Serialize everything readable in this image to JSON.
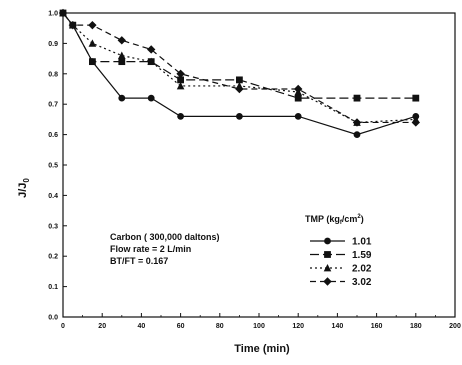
{
  "chart_data": {
    "type": "line",
    "xlabel": "Time (min)",
    "ylabel": "J/J",
    "ylabel_sub": "0",
    "xlim": [
      0,
      200
    ],
    "ylim": [
      0.0,
      1.0
    ],
    "x_ticks": [
      "0",
      "20",
      "40",
      "60",
      "80",
      "100",
      "120",
      "140",
      "160",
      "180",
      "200"
    ],
    "y_ticks": [
      "0.0",
      "0.1",
      "0.2",
      "0.3",
      "0.4",
      "0.5",
      "0.6",
      "0.7",
      "0.8",
      "0.9",
      "1.0"
    ],
    "grid": false,
    "legend_placement": "bottom-right",
    "legend_title": {
      "prefix": "TMP (kg",
      "sub": "f",
      "mid": "/cm",
      "sup": "2",
      "suffix": ")"
    },
    "annotation": [
      "Carbon ( 300,000 daltons)",
      "Flow rate = 2 L/min",
      "BT/FT = 0.167"
    ],
    "series": [
      {
        "name": "1.01",
        "marker": "circle",
        "line": "solid",
        "x": [
          0,
          5,
          15,
          30,
          45,
          60,
          90,
          120,
          150,
          180
        ],
        "y": [
          1.0,
          0.96,
          0.84,
          0.72,
          0.72,
          0.66,
          0.66,
          0.66,
          0.6,
          0.66
        ]
      },
      {
        "name": "1.59",
        "marker": "square",
        "line": "long-dash",
        "x": [
          0,
          5,
          15,
          30,
          45,
          60,
          90,
          120,
          150,
          180
        ],
        "y": [
          1.0,
          0.96,
          0.84,
          0.84,
          0.84,
          0.78,
          0.78,
          0.72,
          0.72,
          0.72
        ]
      },
      {
        "name": "2.02",
        "marker": "triangle",
        "line": "dot",
        "x": [
          0,
          5,
          15,
          30,
          45,
          60,
          90,
          120,
          150,
          180
        ],
        "y": [
          1.0,
          0.96,
          0.9,
          0.86,
          0.84,
          0.76,
          0.76,
          0.74,
          0.64,
          0.65
        ]
      },
      {
        "name": "3.02",
        "marker": "diamond",
        "line": "dash",
        "x": [
          0,
          5,
          15,
          30,
          45,
          60,
          90,
          120,
          150,
          180
        ],
        "y": [
          1.0,
          0.96,
          0.96,
          0.91,
          0.88,
          0.8,
          0.75,
          0.75,
          0.64,
          0.64
        ]
      }
    ]
  }
}
